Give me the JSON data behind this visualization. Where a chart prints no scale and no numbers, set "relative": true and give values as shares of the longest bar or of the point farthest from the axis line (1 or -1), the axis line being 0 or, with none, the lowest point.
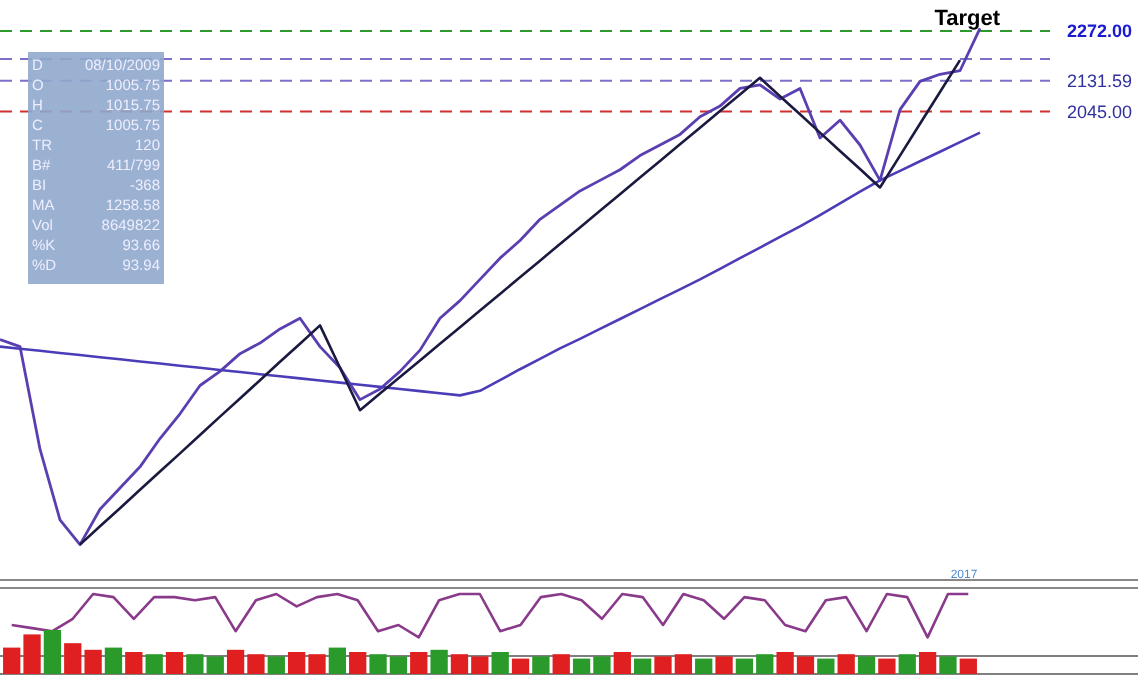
{
  "chart_data": [
    {
      "type": "line",
      "categories": [
        null,
        null,
        null,
        null,
        null,
        null,
        null,
        null,
        null,
        null,
        null,
        null,
        null,
        null,
        null,
        null,
        null,
        null,
        null,
        null,
        null,
        null,
        null,
        null,
        null,
        null,
        null,
        null,
        null,
        null,
        null,
        null,
        null,
        null,
        null,
        null,
        null,
        null,
        null,
        null,
        null,
        null,
        null,
        null,
        null,
        null,
        null,
        null,
        null,
        null
      ],
      "ylim": [
        720,
        2360
      ],
      "yticks": [
        {
          "value": 2045,
          "label": "2045.00"
        },
        {
          "value": 2131.59,
          "label": "2131.59"
        },
        {
          "value": 2272,
          "label": "2272.00"
        }
      ],
      "tick_labels": "y",
      "series": [
        {
          "color": "#5a3fb0",
          "values": [
            1400,
            1380,
            1090,
            890,
            820,
            920,
            980,
            1040,
            1120,
            1190,
            1270,
            1310,
            1360,
            1390,
            1430,
            1460,
            1380,
            1320,
            1230,
            1260,
            1310,
            1370,
            1460,
            1510,
            1570,
            1630,
            1680,
            1740,
            1780,
            1820,
            1850,
            1880,
            1920,
            1950,
            1980,
            2030,
            2060,
            2110,
            2120,
            2080,
            2110,
            1970,
            2020,
            1950,
            1850,
            2050,
            2130,
            2150,
            2160,
            2280
          ]
        },
        {
          "color": "#4b3cb8",
          "values": [
            1380,
            1374,
            1368,
            1362,
            1356,
            1350,
            1344,
            1338,
            1332,
            1326,
            1320,
            1314,
            1308,
            1302,
            1296,
            1290,
            1284,
            1278,
            1272,
            1266,
            1260,
            1254,
            1248,
            1242,
            1255,
            1285,
            1316,
            1345,
            1375,
            1402,
            1430,
            1458,
            1486,
            1514,
            1542,
            1570,
            1600,
            1630,
            1660,
            1690,
            1720,
            1752,
            1785,
            1818,
            1850,
            1877,
            1904,
            1931,
            1958,
            1985
          ]
        },
        {
          "color": "#1a1a40",
          "values": [
            null,
            null,
            null,
            null,
            820,
            872,
            923,
            975,
            1027,
            1078,
            1130,
            1182,
            1233,
            1285,
            1337,
            1388,
            1440,
            1320,
            1200,
            1247,
            1294,
            1341,
            1388,
            1435,
            1482,
            1529,
            1576,
            1623,
            1670,
            1717,
            1764,
            1811,
            1858,
            1905,
            1952,
            1999,
            2046,
            2093,
            2140,
            2088,
            2037,
            1985,
            1933,
            1882,
            1830,
            1920,
            2010,
            2100,
            2190,
            null
          ]
        }
      ],
      "ref_lines": [
        {
          "axis": "y",
          "value": 2272,
          "color": "#2e9a2e",
          "line_style": "dashed"
        },
        {
          "axis": "y",
          "value": 2193,
          "color": "#7a70c8",
          "line_style": "dashed"
        },
        {
          "axis": "y",
          "value": 2131.59,
          "color": "#7a70c8",
          "line_style": "dashed"
        },
        {
          "axis": "y",
          "value": 2045,
          "color": "#d03030",
          "line_style": "dashed"
        }
      ],
      "annotations": [
        {
          "text": "Target",
          "y": 2272
        },
        "D 08/10/2009",
        "O 1005.75",
        "H 1015.75",
        "C 1005.75",
        "TR 120",
        "B# 411/799",
        "BI -368",
        "MA 1258.58",
        "Vol 8649822",
        "%K 93.66",
        "%D 93.94"
      ]
    },
    {
      "type": "line",
      "relative": true,
      "categories": [
        null,
        null,
        null,
        null,
        null,
        null,
        null,
        null,
        null,
        null,
        null,
        null,
        null,
        null,
        null,
        null,
        null,
        null,
        null,
        null,
        null,
        null,
        null,
        null,
        null,
        null,
        null,
        null,
        null,
        null,
        null,
        null,
        null,
        null,
        null,
        null,
        null,
        null,
        null,
        null,
        null,
        null,
        null,
        null,
        null,
        null,
        null,
        null
      ],
      "series": [
        {
          "color": "#8a3a8a",
          "values": [
            0.5,
            0.45,
            0.4,
            0.6,
            1,
            0.95,
            0.6,
            0.95,
            0.95,
            0.9,
            0.95,
            0.4,
            0.9,
            1,
            0.8,
            0.95,
            1,
            0.9,
            0.4,
            0.5,
            0.3,
            0.9,
            1,
            1,
            0.4,
            0.5,
            0.95,
            1,
            0.9,
            0.6,
            1,
            0.95,
            0.5,
            1,
            0.9,
            0.6,
            0.95,
            0.9,
            0.5,
            0.4,
            0.9,
            0.95,
            0.4,
            1,
            0.95,
            0.3,
            1,
            1
          ]
        }
      ],
      "annotations": [
        "2017"
      ]
    },
    {
      "type": "bar",
      "relative": true,
      "categories": [
        null,
        null,
        null,
        null,
        null,
        null,
        null,
        null,
        null,
        null,
        null,
        null,
        null,
        null,
        null,
        null,
        null,
        null,
        null,
        null,
        null,
        null,
        null,
        null,
        null,
        null,
        null,
        null,
        null,
        null,
        null,
        null,
        null,
        null,
        null,
        null,
        null,
        null,
        null,
        null,
        null,
        null,
        null,
        null,
        null,
        null,
        null,
        null
      ],
      "series": [
        {
          "colors": [
            "#e02020",
            "#e02020",
            "#2a9a2a",
            "#e02020",
            "#e02020",
            "#2a9a2a",
            "#e02020",
            "#2a9a2a",
            "#e02020",
            "#2a9a2a",
            "#2a9a2a",
            "#e02020",
            "#e02020",
            "#2a9a2a",
            "#e02020",
            "#e02020",
            "#2a9a2a",
            "#e02020",
            "#2a9a2a",
            "#2a9a2a",
            "#e02020",
            "#2a9a2a",
            "#e02020",
            "#e02020",
            "#2a9a2a",
            "#e02020",
            "#2a9a2a",
            "#e02020",
            "#2a9a2a",
            "#2a9a2a",
            "#e02020",
            "#2a9a2a",
            "#e02020",
            "#e02020",
            "#2a9a2a",
            "#e02020",
            "#2a9a2a",
            "#2a9a2a",
            "#e02020",
            "#e02020",
            "#2a9a2a",
            "#e02020",
            "#2a9a2a",
            "#e02020",
            "#2a9a2a",
            "#e02020",
            "#2a9a2a",
            "#e02020"
          ],
          "values": [
            0.6,
            0.9,
            1,
            0.7,
            0.55,
            0.6,
            0.5,
            0.45,
            0.5,
            0.45,
            0.4,
            0.55,
            0.45,
            0.4,
            0.5,
            0.45,
            0.6,
            0.5,
            0.45,
            0.4,
            0.5,
            0.55,
            0.45,
            0.4,
            0.5,
            0.35,
            0.4,
            0.45,
            0.35,
            0.4,
            0.5,
            0.35,
            0.4,
            0.45,
            0.35,
            0.4,
            0.35,
            0.45,
            0.5,
            0.4,
            0.35,
            0.45,
            0.4,
            0.35,
            0.45,
            0.5,
            0.4,
            0.35
          ]
        }
      ]
    }
  ]
}
